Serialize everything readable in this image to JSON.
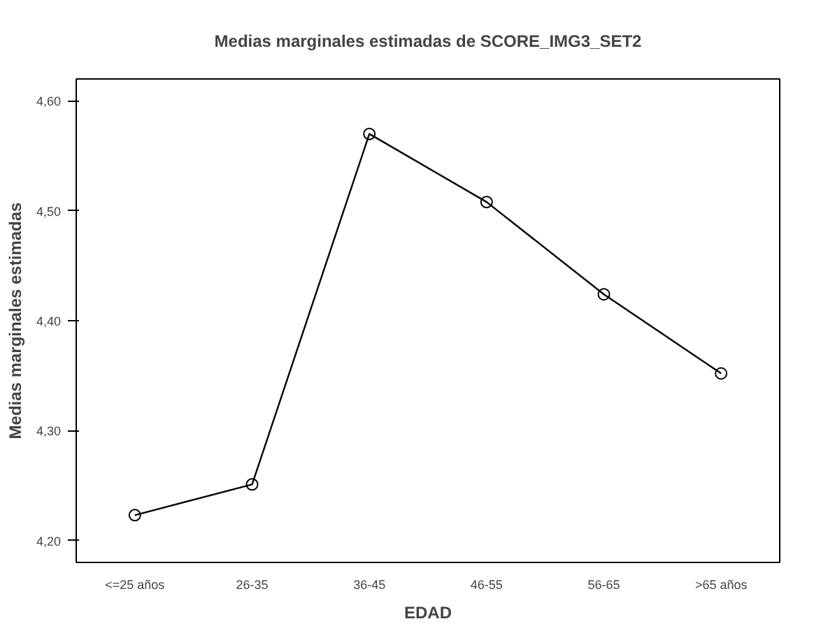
{
  "chart_data": {
    "type": "line",
    "title": "Medias marginales estimadas de SCORE_IMG3_SET2",
    "xlabel": "EDAD",
    "ylabel": "Medias marginales estimadas",
    "categories": [
      "<=25 años",
      "26-35",
      "36-45",
      "46-55",
      "56-65",
      ">65 años"
    ],
    "series": [
      {
        "color": "#000000",
        "values": [
          4.223,
          4.251,
          4.57,
          4.508,
          4.424,
          4.352
        ]
      }
    ],
    "ylim": [
      4.18,
      4.62
    ],
    "yticks": [
      {
        "value": 4.2,
        "label": "4,20"
      },
      {
        "value": 4.3,
        "label": "4,30"
      },
      {
        "value": 4.4,
        "label": "4,40"
      },
      {
        "value": 4.5,
        "label": "4,50"
      },
      {
        "value": 4.6,
        "label": "4,60"
      }
    ],
    "grid": false,
    "marker": "circle",
    "line_style": "solid"
  }
}
